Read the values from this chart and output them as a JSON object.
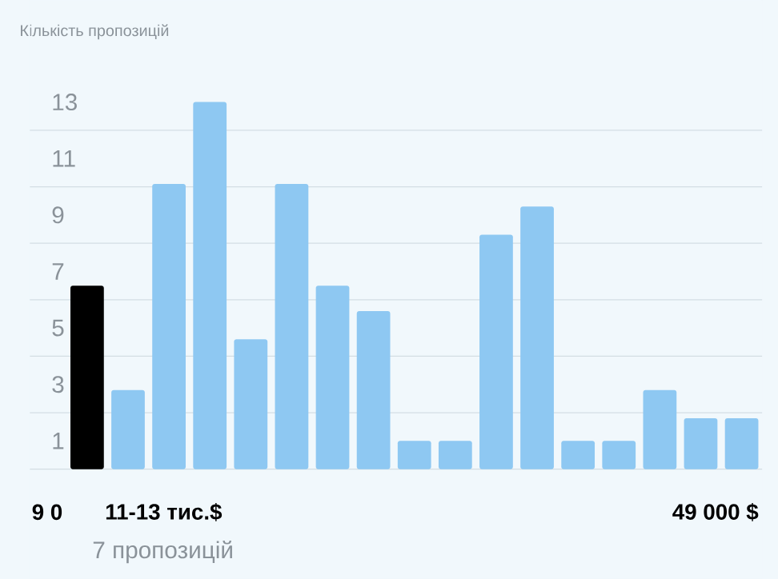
{
  "chart_data": {
    "type": "bar",
    "title": "Кількість пропозицій",
    "categories": [
      null,
      null,
      null,
      null,
      null,
      null,
      null,
      null,
      null,
      null,
      null,
      null,
      null,
      null,
      null,
      null,
      null
    ],
    "values": [
      6.5,
      2.8,
      10.1,
      13,
      4.6,
      10.1,
      6.5,
      5.6,
      1,
      1,
      8.3,
      9.3,
      1,
      1,
      2.8,
      1.8,
      1.8
    ],
    "colors": [
      "#000000",
      "#8ec8f2",
      "#8ec8f2",
      "#8ec8f2",
      "#8ec8f2",
      "#8ec8f2",
      "#8ec8f2",
      "#8ec8f2",
      "#8ec8f2",
      "#8ec8f2",
      "#8ec8f2",
      "#8ec8f2",
      "#8ec8f2",
      "#8ec8f2",
      "#8ec8f2",
      "#8ec8f2",
      "#8ec8f2"
    ],
    "ylim": [
      -3.9,
      16.6
    ],
    "yticks": [
      {
        "value": 0,
        "label": null
      },
      1,
      {
        "value": 2,
        "label": null
      },
      3,
      {
        "value": 4,
        "label": null
      },
      5,
      {
        "value": 6,
        "label": null
      },
      7,
      {
        "value": 8,
        "label": null
      },
      9,
      {
        "value": 10,
        "label": null
      },
      11,
      {
        "value": 12,
        "label": null
      },
      13
    ],
    "grid": true,
    "tick_labels": "y",
    "annotations": [
      "9 0",
      "11-13 тис.$",
      "7 пропозицій",
      "49 000 $"
    ]
  }
}
